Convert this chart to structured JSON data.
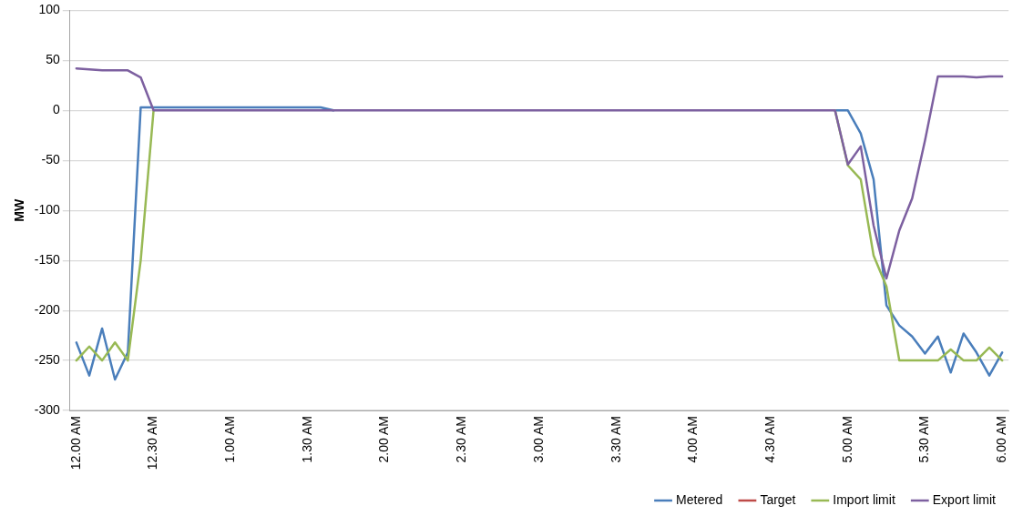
{
  "chart_data": {
    "type": "line",
    "ylabel": "MW",
    "categories": [
      "12.00 AM",
      null,
      null,
      null,
      null,
      null,
      "12.30 AM",
      null,
      null,
      null,
      null,
      null,
      "1.00 AM",
      null,
      null,
      null,
      null,
      null,
      "1.30 AM",
      null,
      null,
      null,
      null,
      null,
      "2.00 AM",
      null,
      null,
      null,
      null,
      null,
      "2.30 AM",
      null,
      null,
      null,
      null,
      null,
      "3.00 AM",
      null,
      null,
      null,
      null,
      null,
      "3.30 AM",
      null,
      null,
      null,
      null,
      null,
      "4.00 AM",
      null,
      null,
      null,
      null,
      null,
      "4.30 AM",
      null,
      null,
      null,
      null,
      null,
      "5.00 AM",
      null,
      null,
      null,
      null,
      null,
      "5.30 AM",
      null,
      null,
      null,
      null,
      null,
      "6.00 AM"
    ],
    "series": [
      {
        "name": "Metered",
        "color": "#4a7ebb",
        "values": [
          -232,
          -265,
          -218,
          -269,
          -242,
          3,
          3,
          3,
          3,
          3,
          3,
          3,
          3,
          3,
          3,
          3,
          3,
          3,
          3,
          3,
          0,
          null,
          null,
          null,
          null,
          null,
          null,
          null,
          null,
          null,
          null,
          null,
          null,
          null,
          null,
          null,
          null,
          null,
          null,
          null,
          null,
          null,
          null,
          null,
          null,
          null,
          null,
          null,
          null,
          null,
          null,
          null,
          null,
          null,
          null,
          null,
          null,
          null,
          null,
          0,
          0,
          -23,
          -69,
          -195,
          -215,
          -226,
          -243,
          -226,
          -262,
          -223,
          -242,
          -265,
          -242
        ]
      },
      {
        "name": "Target",
        "color": "#be4b48",
        "values": [
          null,
          null,
          null,
          null,
          null,
          null,
          null,
          null,
          null,
          null,
          null,
          null,
          null,
          null,
          null,
          null,
          null,
          null,
          null,
          null,
          null,
          null,
          null,
          null,
          null,
          null,
          null,
          null,
          null,
          null,
          null,
          null,
          null,
          null,
          null,
          null,
          null,
          null,
          null,
          null,
          null,
          null,
          null,
          null,
          null,
          null,
          null,
          null,
          null,
          null,
          null,
          null,
          null,
          null,
          null,
          null,
          null,
          null,
          null,
          null,
          null,
          null,
          null,
          null,
          null,
          null,
          null,
          null,
          null,
          null,
          null,
          null,
          null
        ]
      },
      {
        "name": "Import limit",
        "color": "#98b954",
        "values": [
          -250,
          -236,
          -250,
          -232,
          -250,
          -150,
          0,
          null,
          null,
          null,
          null,
          null,
          null,
          null,
          null,
          null,
          null,
          null,
          null,
          null,
          null,
          null,
          null,
          null,
          null,
          null,
          null,
          null,
          null,
          null,
          null,
          null,
          null,
          null,
          null,
          null,
          null,
          null,
          null,
          null,
          null,
          null,
          null,
          null,
          null,
          null,
          null,
          null,
          null,
          null,
          null,
          null,
          null,
          null,
          null,
          null,
          null,
          null,
          null,
          0,
          -55,
          -69,
          -145,
          -176,
          -250,
          -250,
          -250,
          -250,
          -239,
          -250,
          -250,
          -237,
          -250
        ]
      },
      {
        "name": "Export limit",
        "color": "#7d60a0",
        "values": [
          42,
          41,
          40,
          40,
          40,
          33,
          0,
          0,
          0,
          0,
          0,
          0,
          0,
          0,
          0,
          0,
          0,
          0,
          0,
          0,
          0,
          0,
          0,
          0,
          0,
          0,
          0,
          0,
          0,
          0,
          0,
          0,
          0,
          0,
          0,
          0,
          0,
          0,
          0,
          0,
          0,
          0,
          0,
          0,
          0,
          0,
          0,
          0,
          0,
          0,
          0,
          0,
          0,
          0,
          0,
          0,
          0,
          0,
          0,
          0,
          -54,
          -36,
          -115,
          -168,
          -120,
          -88,
          -30,
          34,
          34,
          34,
          33,
          34,
          34
        ]
      }
    ],
    "ylim": [
      -300,
      100
    ],
    "yticks": [
      -300,
      -250,
      -200,
      -150,
      -100,
      -50,
      0,
      50,
      100
    ],
    "grid": "y",
    "legend": "bottom",
    "marker": "none",
    "line_style": "solid"
  }
}
